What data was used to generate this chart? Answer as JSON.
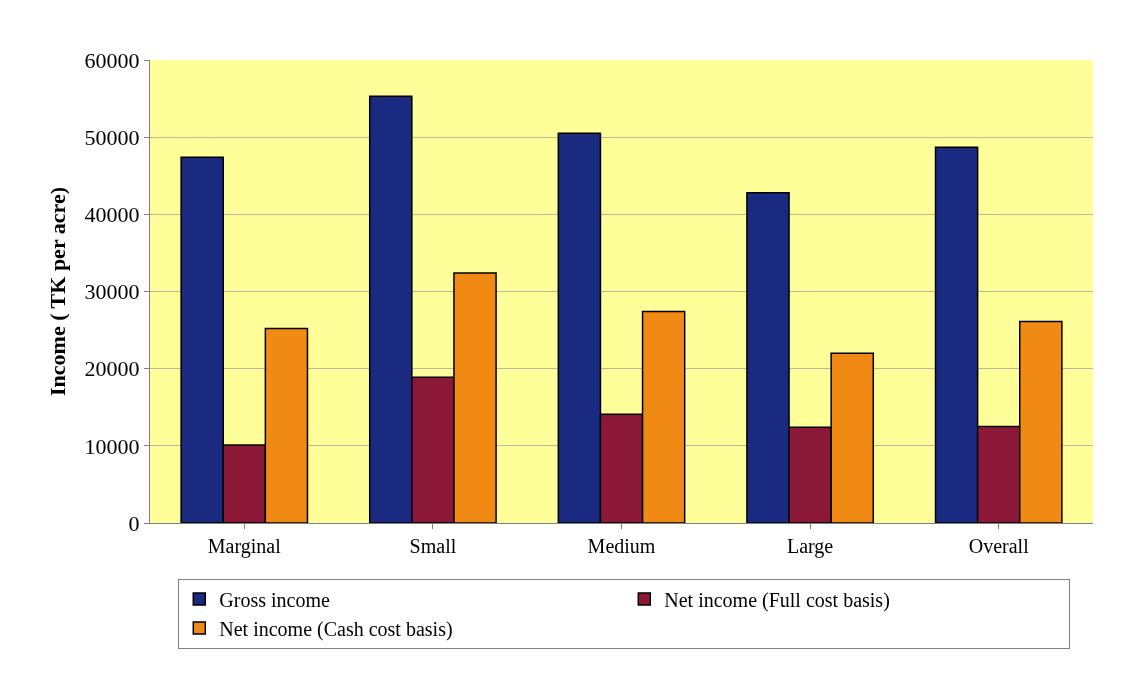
{
  "chart_data": {
    "type": "bar",
    "ylabel": "Income ( TK per acre)",
    "categories": [
      "Marginal",
      "Small",
      "Medium",
      "Large",
      "Overall"
    ],
    "series": [
      {
        "name": "Gross income",
        "color": "#1a2a80",
        "values": [
          47400,
          55300,
          50500,
          42800,
          48700
        ]
      },
      {
        "name": "Net income (Full cost basis)",
        "color": "#8c1838",
        "values": [
          10100,
          18900,
          14100,
          12400,
          12500
        ]
      },
      {
        "name": "Net income (Cash cost basis)",
        "color": "#f08a14",
        "values": [
          25200,
          32400,
          27400,
          22000,
          26100
        ]
      }
    ],
    "ylim": [
      0,
      60000
    ],
    "yticks": [
      0,
      10000,
      20000,
      30000,
      40000,
      50000,
      60000
    ],
    "grid": "y",
    "legend": "bottom"
  }
}
